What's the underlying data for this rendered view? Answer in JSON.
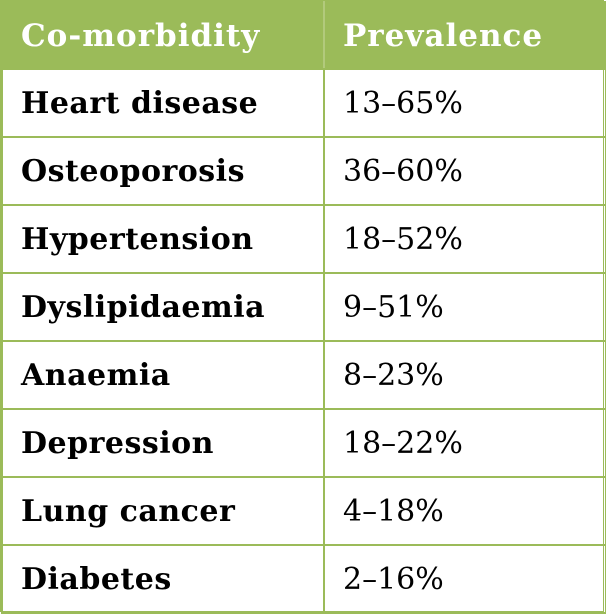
{
  "table": {
    "headers": [
      "Co-morbidity",
      "Prevalence"
    ],
    "rows": [
      {
        "condition": "Heart disease",
        "prevalence": "13–65%"
      },
      {
        "condition": "Osteoporosis",
        "prevalence": "36–60%"
      },
      {
        "condition": "Hypertension",
        "prevalence": "18–52%"
      },
      {
        "condition": "Dyslipidaemia",
        "prevalence": "9–51%"
      },
      {
        "condition": "Anaemia",
        "prevalence": "8–23%"
      },
      {
        "condition": "Depression",
        "prevalence": "18–22%"
      },
      {
        "condition": "Lung cancer",
        "prevalence": "4–18%"
      },
      {
        "condition": "Diabetes",
        "prevalence": "2–16%"
      }
    ]
  },
  "colors": {
    "header_background": "#9bbb59",
    "header_text": "#ffffff",
    "border": "#9bbb59",
    "body_text": "#000000"
  }
}
